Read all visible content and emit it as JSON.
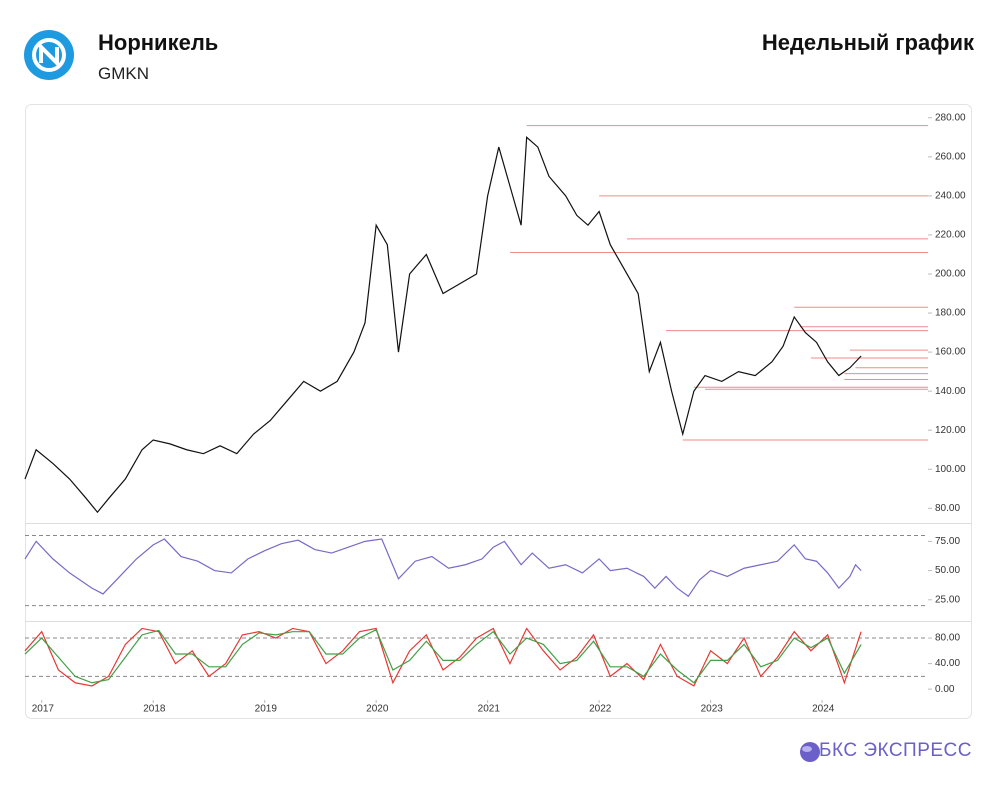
{
  "header": {
    "title": "Норникель",
    "ticker": "GMKN",
    "period": "Недельный график"
  },
  "footer": {
    "brand": "БКС ЭКСПРЕСС"
  },
  "chart_data": [
    {
      "type": "line",
      "x": [
        2016.85,
        2016.95,
        2017.1,
        2017.25,
        2017.4,
        2017.5,
        2017.6,
        2017.75,
        2017.9,
        2018.0,
        2018.15,
        2018.3,
        2018.45,
        2018.6,
        2018.75,
        2018.9,
        2019.05,
        2019.2,
        2019.35,
        2019.5,
        2019.65,
        2019.8,
        2019.9,
        2020.0,
        2020.1,
        2020.2,
        2020.3,
        2020.45,
        2020.6,
        2020.75,
        2020.9,
        2021.0,
        2021.1,
        2021.2,
        2021.3,
        2021.35,
        2021.45,
        2021.55,
        2021.7,
        2021.8,
        2021.9,
        2022.0,
        2022.1,
        2022.2,
        2022.35,
        2022.45,
        2022.55,
        2022.65,
        2022.75,
        2022.85,
        2022.95,
        2023.1,
        2023.25,
        2023.4,
        2023.55,
        2023.65,
        2023.75,
        2023.85,
        2023.95,
        2024.05,
        2024.15,
        2024.25,
        2024.35
      ],
      "series": [
        {
          "color": "#111111",
          "values": [
            95,
            110,
            103,
            95,
            85,
            78,
            85,
            95,
            110,
            115,
            113,
            110,
            108,
            112,
            108,
            118,
            125,
            135,
            145,
            140,
            145,
            160,
            175,
            225,
            215,
            160,
            200,
            210,
            190,
            195,
            200,
            240,
            265,
            245,
            225,
            270,
            265,
            250,
            240,
            230,
            225,
            232,
            215,
            205,
            190,
            150,
            165,
            140,
            118,
            140,
            148,
            145,
            150,
            148,
            155,
            163,
            178,
            170,
            165,
            155,
            148,
            152,
            158
          ]
        }
      ],
      "levels": [
        {
          "x": 2021.35,
          "y": 276
        },
        {
          "x": 2022.0,
          "y": 240
        },
        {
          "x": 2022.25,
          "y": 218
        },
        {
          "x": 2021.2,
          "y": 211
        },
        {
          "x": 2023.75,
          "y": 183
        },
        {
          "x": 2023.8,
          "y": 173
        },
        {
          "x": 2022.6,
          "y": 171
        },
        {
          "x": 2024.25,
          "y": 161
        },
        {
          "x": 2023.9,
          "y": 157
        },
        {
          "x": 2024.3,
          "y": 152
        },
        {
          "x": 2024.2,
          "y": 149
        },
        {
          "x": 2024.2,
          "y": 146
        },
        {
          "x": 2022.85,
          "y": 142
        },
        {
          "x": 2022.95,
          "y": 141
        },
        {
          "x": 2022.75,
          "y": 115
        }
      ],
      "level_color": "#f08a8a",
      "xlim": [
        2016.85,
        2024.95
      ],
      "ylim": [
        73,
        285
      ],
      "yticks": [
        {
          "value": 80,
          "label": "80.00"
        },
        {
          "value": 100,
          "label": "100.00"
        },
        {
          "value": 120,
          "label": "120.00"
        },
        {
          "value": 140,
          "label": "140.00"
        },
        {
          "value": 160,
          "label": "160.00"
        },
        {
          "value": 180,
          "label": "180.00"
        },
        {
          "value": 200,
          "label": "200.00"
        },
        {
          "value": 220,
          "label": "220.00"
        },
        {
          "value": 240,
          "label": "240.00"
        },
        {
          "value": 260,
          "label": "260.00"
        },
        {
          "value": 280,
          "label": "280.00"
        }
      ]
    },
    {
      "type": "line",
      "x": [
        2016.85,
        2016.95,
        2017.1,
        2017.25,
        2017.45,
        2017.55,
        2017.7,
        2017.85,
        2018.0,
        2018.1,
        2018.25,
        2018.4,
        2018.55,
        2018.7,
        2018.85,
        2019.0,
        2019.15,
        2019.3,
        2019.45,
        2019.6,
        2019.75,
        2019.9,
        2020.05,
        2020.2,
        2020.35,
        2020.5,
        2020.65,
        2020.8,
        2020.95,
        2021.05,
        2021.15,
        2021.3,
        2021.4,
        2021.55,
        2021.7,
        2021.85,
        2022.0,
        2022.1,
        2022.25,
        2022.4,
        2022.5,
        2022.6,
        2022.7,
        2022.8,
        2022.9,
        2023.0,
        2023.15,
        2023.3,
        2023.45,
        2023.6,
        2023.75,
        2023.85,
        2023.95,
        2024.05,
        2024.15,
        2024.25,
        2024.3,
        2024.35
      ],
      "series": [
        {
          "color": "#7b68c8",
          "values": [
            60,
            75,
            60,
            48,
            35,
            30,
            45,
            60,
            72,
            77,
            62,
            58,
            50,
            48,
            60,
            67,
            73,
            76,
            68,
            65,
            70,
            75,
            77,
            43,
            58,
            62,
            52,
            55,
            60,
            70,
            75,
            55,
            65,
            52,
            55,
            48,
            60,
            50,
            52,
            45,
            35,
            45,
            35,
            28,
            42,
            50,
            45,
            52,
            55,
            58,
            72,
            60,
            58,
            48,
            35,
            45,
            55,
            50
          ]
        }
      ],
      "hlines": [
        80,
        20
      ],
      "xlim": [
        2016.85,
        2024.95
      ],
      "ylim": [
        6,
        89
      ],
      "yticks": [
        {
          "value": 25,
          "label": "25.00"
        },
        {
          "value": 50,
          "label": "50.00"
        },
        {
          "value": 75,
          "label": "75.00"
        }
      ]
    },
    {
      "type": "line",
      "x": [
        2016.85,
        2017,
        2017.15,
        2017.3,
        2017.45,
        2017.6,
        2017.75,
        2017.9,
        2018.05,
        2018.2,
        2018.35,
        2018.5,
        2018.65,
        2018.8,
        2018.95,
        2019.1,
        2019.25,
        2019.4,
        2019.55,
        2019.7,
        2019.85,
        2020,
        2020.15,
        2020.3,
        2020.45,
        2020.6,
        2020.75,
        2020.9,
        2021.05,
        2021.2,
        2021.35,
        2021.5,
        2021.65,
        2021.8,
        2021.95,
        2022.1,
        2022.25,
        2022.4,
        2022.55,
        2022.7,
        2022.85,
        2023,
        2023.15,
        2023.3,
        2023.45,
        2023.6,
        2023.75,
        2023.9,
        2024.05,
        2024.2,
        2024.35
      ],
      "series": [
        {
          "color": "#e53935",
          "values": [
            60,
            90,
            30,
            10,
            5,
            20,
            70,
            95,
            90,
            40,
            60,
            20,
            40,
            85,
            90,
            80,
            95,
            90,
            40,
            60,
            90,
            95,
            10,
            60,
            85,
            30,
            50,
            80,
            95,
            40,
            95,
            60,
            30,
            50,
            85,
            20,
            40,
            15,
            70,
            20,
            5,
            60,
            40,
            80,
            20,
            50,
            90,
            60,
            85,
            10,
            90
          ]
        },
        {
          "color": "#43a047",
          "values": [
            55,
            80,
            50,
            20,
            10,
            15,
            50,
            85,
            92,
            55,
            55,
            35,
            35,
            70,
            88,
            85,
            90,
            90,
            55,
            55,
            80,
            93,
            30,
            45,
            75,
            45,
            45,
            70,
            90,
            55,
            80,
            70,
            40,
            45,
            75,
            35,
            35,
            20,
            55,
            30,
            10,
            45,
            45,
            70,
            35,
            45,
            80,
            65,
            80,
            25,
            70
          ]
        }
      ],
      "hlines": [
        80,
        20
      ],
      "xlim": [
        2016.85,
        2024.95
      ],
      "ylim": [
        -17,
        102
      ],
      "yticks": [
        {
          "value": 0,
          "label": "0.00"
        },
        {
          "value": 40,
          "label": "40.00"
        },
        {
          "value": 80,
          "label": "80.00"
        }
      ],
      "xticks": [
        2017,
        2018,
        2019,
        2020,
        2021,
        2022,
        2023,
        2024
      ]
    }
  ]
}
